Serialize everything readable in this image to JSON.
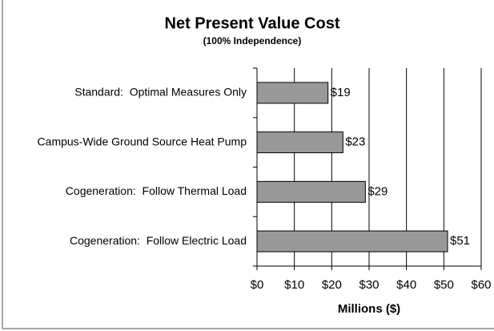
{
  "chart_data": {
    "type": "bar",
    "orientation": "horizontal",
    "title": "Net Present Value Cost",
    "subtitle": "(100% Independence)",
    "xlabel": "Millions ($)",
    "categories": [
      "Standard:  Optimal Measures Only",
      "Campus-Wide Ground Source Heat Pump",
      "Cogeneration:  Follow Thermal Load",
      "Cogeneration:  Follow Electric Load"
    ],
    "values": [
      19,
      23,
      29,
      51
    ],
    "value_labels": [
      "$19",
      "$23",
      "$29",
      "$51"
    ],
    "color": "#999999",
    "xlim": [
      0,
      60
    ],
    "xticks": [
      {
        "value": 0,
        "label": "$0"
      },
      {
        "value": 10,
        "label": "$10"
      },
      {
        "value": 20,
        "label": "$20"
      },
      {
        "value": 30,
        "label": "$30"
      },
      {
        "value": 40,
        "label": "$40"
      },
      {
        "value": 50,
        "label": "$50"
      },
      {
        "value": 60,
        "label": "$60"
      }
    ],
    "grid": true
  }
}
